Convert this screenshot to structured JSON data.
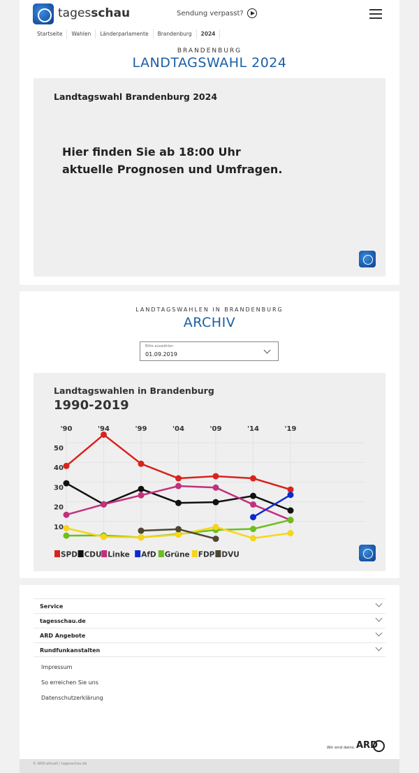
{
  "header": {
    "brand_light": "tages",
    "brand_bold": "schau",
    "missed": "Sendung verpasst?"
  },
  "breadcrumb": [
    "Startseite",
    "Wahlen",
    "Länderparlamente",
    "Brandenburg",
    "2024"
  ],
  "section1": {
    "kicker": "BRANDENBURG",
    "title": "LANDTAGSWAHL 2024",
    "box_title": "Landtagswahl Brandenburg 2024",
    "box_line1": "Hier finden Sie ab 18:00 Uhr",
    "box_line2": "aktuelle Prognosen und Umfragen."
  },
  "section2": {
    "kicker": "LANDTAGSWAHLEN IN BRANDENBURG",
    "title": "ARCHIV",
    "select_label": "Bitte auswählen",
    "select_value": "01.09.2019"
  },
  "chart_data": {
    "type": "line",
    "title": "Landtagswahlen in Brandenburg",
    "subtitle": "1990-2019",
    "categories": [
      "'90",
      "'94",
      "'99",
      "'04",
      "'09",
      "'14",
      "'19"
    ],
    "yticks": [
      10,
      20,
      30,
      40,
      50
    ],
    "ylim": [
      0,
      56
    ],
    "grid": true,
    "legend_placement": "bottom-left",
    "series": [
      {
        "name": "SPD",
        "color": "#d9231d",
        "values": [
          38.2,
          54.1,
          39.3,
          31.9,
          33.0,
          31.9,
          26.2
        ]
      },
      {
        "name": "CDU",
        "color": "#111111",
        "values": [
          29.4,
          18.7,
          26.5,
          19.4,
          19.8,
          23.0,
          15.6
        ]
      },
      {
        "name": "Linke",
        "color": "#c2307f",
        "values": [
          13.4,
          18.7,
          23.3,
          28.0,
          27.2,
          18.6,
          10.7
        ]
      },
      {
        "name": "AfD",
        "color": "#0a2bd0",
        "values": [
          null,
          null,
          null,
          null,
          null,
          12.2,
          23.5
        ]
      },
      {
        "name": "Grüne",
        "color": "#6cbf1c",
        "values": [
          2.8,
          2.9,
          1.9,
          3.6,
          5.7,
          6.2,
          10.8
        ]
      },
      {
        "name": "FDP",
        "color": "#f7d51a",
        "values": [
          6.6,
          2.2,
          1.9,
          3.3,
          7.2,
          1.5,
          4.1
        ]
      },
      {
        "name": "DVU",
        "color": "#4d4732",
        "values": [
          null,
          null,
          5.3,
          6.1,
          1.2,
          null,
          null
        ]
      }
    ]
  },
  "footer": {
    "accordion": [
      "Service",
      "tagesschau.de",
      "ARD Angebote",
      "Rundfunkanstalten"
    ],
    "links": [
      "Impressum",
      "So erreichen Sie uns",
      "Datenschutzerklärung"
    ],
    "slogan": "Wir sind deins.",
    "ard": "ARD",
    "copyright": "© ARD-aktuell / tagesschau.de"
  }
}
